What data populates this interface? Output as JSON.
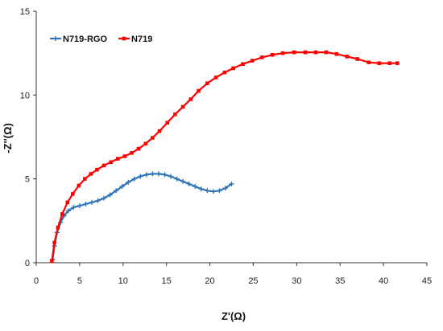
{
  "chart_data": {
    "type": "line",
    "xlabel": "Z'(Ω)",
    "ylabel": "-Z''(Ω)",
    "xlim": [
      0,
      45
    ],
    "ylim": [
      0,
      15
    ],
    "xticks": [
      0,
      5,
      10,
      15,
      20,
      25,
      30,
      35,
      40,
      45
    ],
    "yticks": [
      0,
      5,
      10,
      15
    ],
    "grid": false,
    "legend": "top-left",
    "series": [
      {
        "name": "N719-RGO",
        "color": "#2e75b6",
        "marker": "plus",
        "x": [
          1.9,
          2.1,
          2.4,
          2.8,
          3.2,
          3.7,
          4.3,
          5.0,
          5.7,
          6.4,
          7.1,
          7.8,
          8.5,
          9.2,
          9.9,
          10.6,
          11.3,
          12.0,
          12.7,
          13.4,
          14.1,
          14.8,
          15.5,
          16.2,
          16.9,
          17.6,
          18.3,
          19.0,
          19.7,
          20.4,
          21.1,
          21.8,
          22.5
        ],
        "y": [
          0.2,
          1.0,
          1.8,
          2.4,
          2.8,
          3.1,
          3.3,
          3.4,
          3.5,
          3.6,
          3.7,
          3.85,
          4.05,
          4.3,
          4.55,
          4.8,
          5.0,
          5.15,
          5.25,
          5.3,
          5.3,
          5.25,
          5.15,
          5.0,
          4.85,
          4.7,
          4.55,
          4.4,
          4.3,
          4.25,
          4.3,
          4.45,
          4.7
        ]
      },
      {
        "name": "N719",
        "color": "#ff0000",
        "marker": "square",
        "x": [
          1.8,
          2.1,
          2.5,
          3.0,
          3.6,
          4.2,
          4.9,
          5.6,
          6.3,
          7.0,
          7.8,
          8.6,
          9.4,
          10.2,
          11.0,
          11.8,
          12.6,
          13.4,
          14.2,
          15.1,
          16.0,
          16.9,
          17.8,
          18.7,
          19.7,
          20.7,
          21.7,
          22.7,
          23.8,
          24.9,
          26.0,
          27.2,
          28.4,
          29.7,
          31.0,
          32.2,
          33.4,
          34.6,
          35.8,
          37.0,
          38.3,
          39.5,
          40.7,
          41.6
        ],
        "y": [
          0.1,
          1.2,
          2.1,
          2.9,
          3.6,
          4.1,
          4.6,
          5.0,
          5.3,
          5.55,
          5.8,
          6.0,
          6.2,
          6.35,
          6.55,
          6.8,
          7.1,
          7.45,
          7.85,
          8.35,
          8.85,
          9.3,
          9.75,
          10.25,
          10.7,
          11.05,
          11.35,
          11.6,
          11.85,
          12.05,
          12.25,
          12.4,
          12.5,
          12.55,
          12.55,
          12.55,
          12.55,
          12.45,
          12.3,
          12.15,
          11.95,
          11.9,
          11.9,
          11.9
        ]
      }
    ]
  }
}
